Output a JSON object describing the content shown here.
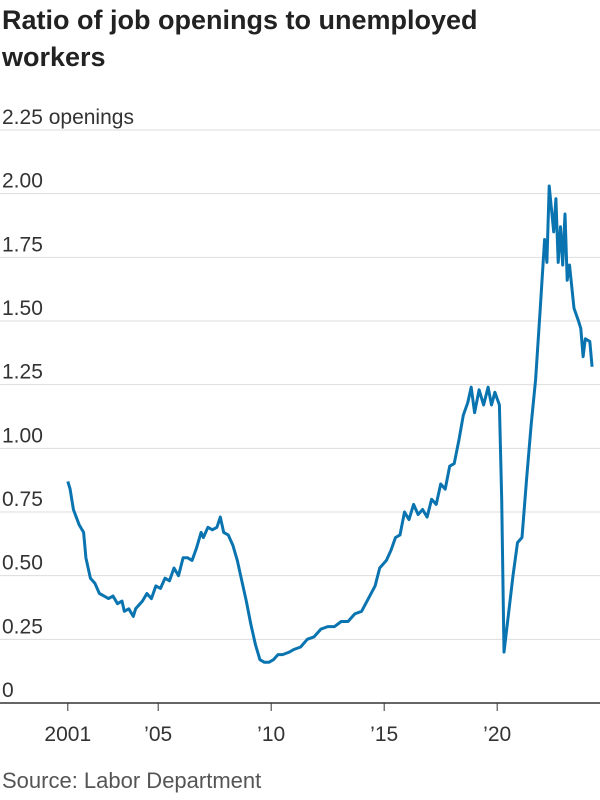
{
  "chart_data": {
    "type": "line",
    "title": "Ratio of job openings to unemployed workers",
    "source": "Source: Labor Department",
    "xlim": [
      1998,
      2024.55
    ],
    "xticks": [
      2001,
      {
        "value": 2005,
        "label": "’05"
      },
      {
        "value": 2010,
        "label": "’10"
      },
      {
        "value": 2015,
        "label": "’15"
      },
      {
        "value": 2020,
        "label": "’20"
      }
    ],
    "ylim": [
      0,
      2.25
    ],
    "yticks": [
      0,
      0.25,
      {
        "value": 0.5,
        "label": "0.50"
      },
      {
        "value": 0.75,
        "label": "0.75"
      },
      {
        "value": 1,
        "label": "1.00"
      },
      {
        "value": 1.25,
        "label": "1.25"
      },
      {
        "value": 1.5,
        "label": "1.50"
      },
      {
        "value": 1.75,
        "label": "1.75"
      },
      {
        "value": 2,
        "label": "2.00"
      },
      {
        "value": 2.25,
        "label": "2.25 openings"
      }
    ],
    "grid": true,
    "series": [
      {
        "color": "#0a74b0",
        "x": [
          2001.0,
          2001.1,
          2001.25,
          2001.5,
          2001.7,
          2001.8,
          2002.0,
          2002.2,
          2002.4,
          2002.6,
          2002.8,
          2003.0,
          2003.2,
          2003.4,
          2003.5,
          2003.7,
          2003.9,
          2004.0,
          2004.3,
          2004.5,
          2004.7,
          2004.9,
          2005.1,
          2005.3,
          2005.5,
          2005.7,
          2005.9,
          2006.1,
          2006.3,
          2006.5,
          2006.7,
          2006.9,
          2007.0,
          2007.2,
          2007.4,
          2007.6,
          2007.75,
          2007.9,
          2008.1,
          2008.3,
          2008.5,
          2008.7,
          2008.9,
          2009.1,
          2009.3,
          2009.5,
          2009.7,
          2009.9,
          2010.1,
          2010.3,
          2010.5,
          2010.8,
          2011.0,
          2011.3,
          2011.6,
          2011.9,
          2012.2,
          2012.5,
          2012.8,
          2013.1,
          2013.4,
          2013.7,
          2014.0,
          2014.3,
          2014.6,
          2014.8,
          2015.1,
          2015.3,
          2015.5,
          2015.7,
          2015.9,
          2016.1,
          2016.3,
          2016.5,
          2016.7,
          2016.9,
          2017.1,
          2017.3,
          2017.5,
          2017.7,
          2017.9,
          2018.1,
          2018.3,
          2018.5,
          2018.7,
          2018.85,
          2019.0,
          2019.2,
          2019.4,
          2019.6,
          2019.75,
          2019.9,
          2020.1,
          2020.2,
          2020.3,
          2020.5,
          2020.7,
          2020.9,
          2021.1,
          2021.3,
          2021.5,
          2021.7,
          2021.9,
          2022.1,
          2022.2,
          2022.3,
          2022.5,
          2022.6,
          2022.7,
          2022.8,
          2022.9,
          2023.0,
          2023.1,
          2023.2,
          2023.4,
          2023.6,
          2023.7,
          2023.8,
          2023.9,
          2024.1,
          2024.2
        ],
        "values": [
          0.87,
          0.84,
          0.76,
          0.7,
          0.67,
          0.57,
          0.49,
          0.47,
          0.43,
          0.42,
          0.41,
          0.42,
          0.39,
          0.4,
          0.36,
          0.37,
          0.34,
          0.37,
          0.4,
          0.43,
          0.41,
          0.46,
          0.45,
          0.49,
          0.48,
          0.53,
          0.5,
          0.57,
          0.57,
          0.56,
          0.61,
          0.67,
          0.65,
          0.69,
          0.68,
          0.69,
          0.73,
          0.67,
          0.66,
          0.62,
          0.56,
          0.48,
          0.4,
          0.31,
          0.23,
          0.17,
          0.16,
          0.16,
          0.17,
          0.19,
          0.19,
          0.2,
          0.21,
          0.22,
          0.25,
          0.26,
          0.29,
          0.3,
          0.3,
          0.32,
          0.32,
          0.35,
          0.36,
          0.41,
          0.46,
          0.53,
          0.56,
          0.6,
          0.65,
          0.66,
          0.75,
          0.72,
          0.78,
          0.74,
          0.76,
          0.73,
          0.8,
          0.78,
          0.86,
          0.84,
          0.93,
          0.94,
          1.03,
          1.13,
          1.18,
          1.24,
          1.14,
          1.23,
          1.17,
          1.24,
          1.17,
          1.22,
          1.17,
          0.8,
          0.2,
          0.35,
          0.5,
          0.63,
          0.65,
          0.88,
          1.09,
          1.27,
          1.54,
          1.82,
          1.73,
          2.03,
          1.85,
          1.98,
          1.73,
          1.87,
          1.72,
          1.92,
          1.66,
          1.72,
          1.55,
          1.5,
          1.47,
          1.36,
          1.43,
          1.42,
          1.32
        ]
      }
    ]
  }
}
